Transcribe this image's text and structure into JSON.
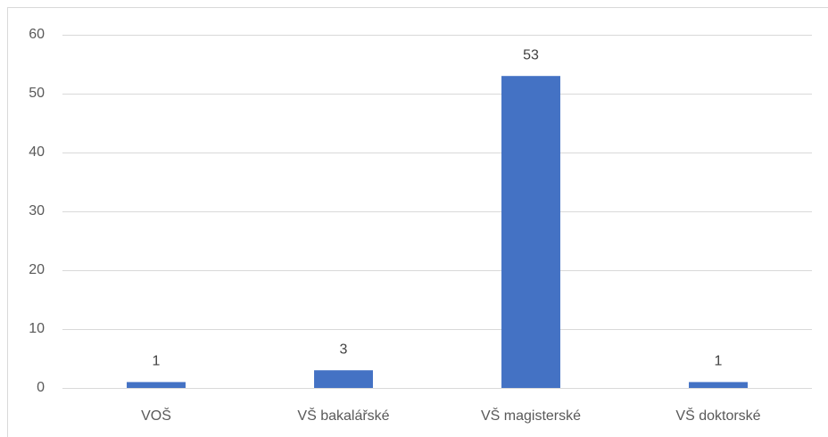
{
  "chart_data": {
    "type": "bar",
    "categories": [
      "VOŠ",
      "VŠ bakalářské",
      "VŠ magisterské",
      "VŠ doktorské"
    ],
    "values": [
      1,
      3,
      53,
      1
    ],
    "color": "#4472c4",
    "ylim": [
      0,
      60
    ],
    "yticks": [
      0,
      10,
      20,
      30,
      40,
      50,
      60
    ],
    "grid": true
  }
}
